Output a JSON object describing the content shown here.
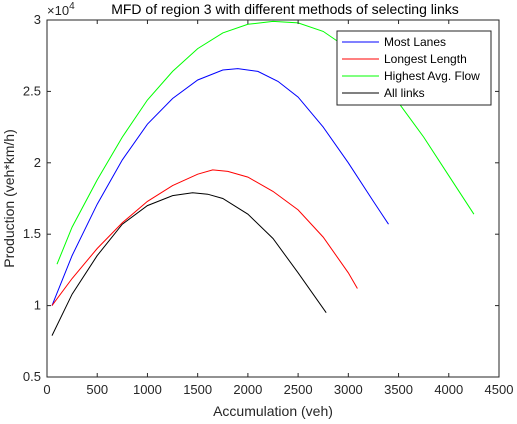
{
  "chart_data": {
    "type": "line",
    "title": "MFD of region 3 with different methods of selecting links",
    "exponent_base": "×10",
    "exponent_power": "4",
    "xlabel": "Accumulation (veh)",
    "ylabel": "Production (veh*km/h)",
    "xlim": [
      0,
      4500
    ],
    "ylim": [
      5000,
      30000
    ],
    "xticks": [
      0,
      500,
      1000,
      1500,
      2000,
      2500,
      3000,
      3500,
      4000,
      4500
    ],
    "yticks": [
      5000,
      10000,
      15000,
      20000,
      25000,
      30000
    ],
    "xtick_labels": [
      "0",
      "500",
      "1000",
      "1500",
      "2000",
      "2500",
      "3000",
      "3500",
      "4000",
      "4500"
    ],
    "ytick_labels": [
      "0.5",
      "1",
      "1.5",
      "2",
      "2.5",
      "3"
    ],
    "grid": false,
    "legend_position": "top-right",
    "series": [
      {
        "name": "Most Lanes",
        "color": "#0000ff",
        "x": [
          50,
          250,
          500,
          750,
          1000,
          1250,
          1500,
          1750,
          1900,
          2100,
          2300,
          2500,
          2750,
          3000,
          3250,
          3400
        ],
        "y": [
          10000,
          13500,
          17100,
          20200,
          22700,
          24500,
          25800,
          26500,
          26600,
          26400,
          25700,
          24600,
          22500,
          20000,
          17300,
          15700
        ]
      },
      {
        "name": "Longest Length",
        "color": "#ff0000",
        "x": [
          50,
          250,
          500,
          750,
          1000,
          1250,
          1500,
          1650,
          1800,
          2000,
          2250,
          2500,
          2750,
          3000,
          3090
        ],
        "y": [
          10000,
          11900,
          14000,
          15800,
          17300,
          18400,
          19200,
          19500,
          19400,
          19000,
          18000,
          16700,
          14800,
          12300,
          11200
        ]
      },
      {
        "name": "Highest Avg. Flow",
        "color": "#00ff00",
        "x": [
          100,
          250,
          500,
          750,
          1000,
          1250,
          1500,
          1750,
          2000,
          2250,
          2500,
          2750,
          3000,
          3250,
          3500,
          3750,
          4000,
          4250
        ],
        "y": [
          12900,
          15500,
          18800,
          21800,
          24400,
          26400,
          28000,
          29100,
          29700,
          29900,
          29800,
          29200,
          28000,
          26300,
          24200,
          21800,
          19100,
          16400
        ]
      },
      {
        "name": "All links",
        "color": "#000000",
        "x": [
          50,
          250,
          500,
          750,
          1000,
          1250,
          1450,
          1600,
          1750,
          2000,
          2250,
          2500,
          2780
        ],
        "y": [
          7900,
          10800,
          13500,
          15700,
          17000,
          17700,
          17900,
          17800,
          17500,
          16400,
          14700,
          12300,
          9500
        ]
      }
    ]
  }
}
